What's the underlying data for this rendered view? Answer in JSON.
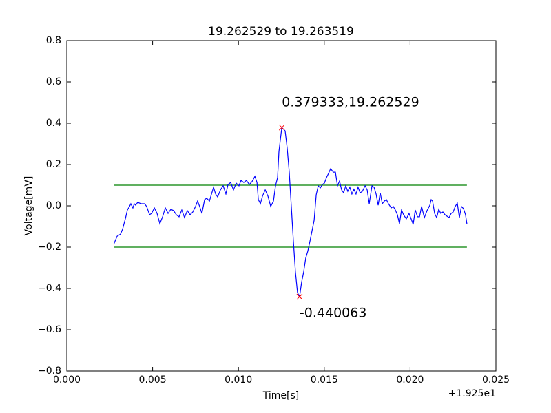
{
  "chart_data": {
    "type": "line",
    "title": "19.262529 to 19.263519",
    "x_label": "Time[s]",
    "y_label": "Voltage[mV]",
    "x_offset_label": "+1.925e1",
    "xlim": [
      0,
      0.025
    ],
    "xticks": [
      {
        "value": 0,
        "label": "0.000"
      },
      {
        "value": 0.005,
        "label": "0.005"
      },
      {
        "value": 0.01,
        "label": "0.010"
      },
      {
        "value": 0.015,
        "label": "0.015"
      },
      {
        "value": 0.02,
        "label": "0.020"
      },
      {
        "value": 0.025,
        "label": "0.025"
      }
    ],
    "ylim": [
      -0.8,
      0.8
    ],
    "yticks": [
      {
        "value": -0.8,
        "label": "−0.8"
      },
      {
        "value": -0.6,
        "label": "−0.6"
      },
      {
        "value": -0.4,
        "label": "−0.4"
      },
      {
        "value": -0.2,
        "label": "−0.2"
      },
      {
        "value": 0,
        "label": "0.0"
      },
      0.2,
      0.4,
      0.6,
      0.8
    ],
    "series": [
      {
        "color": "#0000ff",
        "x": [
          0.00273,
          0.00293,
          0.00313,
          0.00325,
          0.00341,
          0.00353,
          0.00365,
          0.00373,
          0.00385,
          0.00393,
          0.00401,
          0.00413,
          0.00433,
          0.00453,
          0.00465,
          0.00482,
          0.00494,
          0.0051,
          0.00526,
          0.00542,
          0.00558,
          0.00574,
          0.0059,
          0.00606,
          0.00622,
          0.00638,
          0.00654,
          0.0067,
          0.00686,
          0.00702,
          0.00718,
          0.00734,
          0.0075,
          0.00762,
          0.00774,
          0.00787,
          0.00803,
          0.00815,
          0.00831,
          0.00843,
          0.00855,
          0.00867,
          0.00879,
          0.00895,
          0.00911,
          0.00927,
          0.00939,
          0.00955,
          0.00971,
          0.00987,
          0.01003,
          0.01015,
          0.01031,
          0.01047,
          0.01063,
          0.01079,
          0.01096,
          0.01108,
          0.01116,
          0.01128,
          0.0114,
          0.01156,
          0.01172,
          0.01188,
          0.01204,
          0.01216,
          0.01228,
          0.01236,
          0.01248,
          0.012529,
          0.01272,
          0.01284,
          0.01296,
          0.01308,
          0.0132,
          0.01332,
          0.01344,
          0.01356,
          0.01368,
          0.0138,
          0.01392,
          0.01404,
          0.01417,
          0.01429,
          0.01441,
          0.01453,
          0.01465,
          0.01477,
          0.01489,
          0.01501,
          0.01513,
          0.01525,
          0.01537,
          0.01553,
          0.01565,
          0.01577,
          0.01589,
          0.01601,
          0.01613,
          0.01625,
          0.01637,
          0.01649,
          0.01661,
          0.01673,
          0.01685,
          0.01697,
          0.01709,
          0.01722,
          0.01738,
          0.0175,
          0.01762,
          0.01778,
          0.0179,
          0.01802,
          0.01814,
          0.01826,
          0.01838,
          0.0185,
          0.01862,
          0.01874,
          0.0189,
          0.01902,
          0.01914,
          0.01926,
          0.01938,
          0.0195,
          0.01962,
          0.01978,
          0.01994,
          0.02006,
          0.02018,
          0.0203,
          0.02043,
          0.02055,
          0.02067,
          0.02083,
          0.02099,
          0.02115,
          0.02123,
          0.02131,
          0.02143,
          0.02155,
          0.02167,
          0.02179,
          0.02191,
          0.02203,
          0.02215,
          0.02227,
          0.02239,
          0.02251,
          0.02263,
          0.02275,
          0.02287,
          0.02299,
          0.02311,
          0.02323,
          0.02331
        ],
        "values": [
          -0.187,
          -0.147,
          -0.137,
          -0.113,
          -0.063,
          -0.02,
          -0.003,
          0.01,
          -0.01,
          0.01,
          0.003,
          0.017,
          0.01,
          0.01,
          -0.003,
          -0.043,
          -0.037,
          -0.01,
          -0.037,
          -0.087,
          -0.053,
          -0.01,
          -0.037,
          -0.017,
          -0.023,
          -0.043,
          -0.053,
          -0.02,
          -0.057,
          -0.023,
          -0.043,
          -0.03,
          -0.003,
          0.023,
          -0.003,
          -0.037,
          0.03,
          0.037,
          0.023,
          0.057,
          0.09,
          0.057,
          0.043,
          0.077,
          0.097,
          0.057,
          0.103,
          0.113,
          0.077,
          0.11,
          0.097,
          0.123,
          0.113,
          0.123,
          0.103,
          0.117,
          0.143,
          0.113,
          0.03,
          0.01,
          0.047,
          0.077,
          0.047,
          -0.003,
          0.023,
          0.097,
          0.137,
          0.263,
          0.347,
          0.379333,
          0.363,
          0.28,
          0.163,
          -0.003,
          -0.17,
          -0.32,
          -0.42,
          -0.440063,
          -0.37,
          -0.32,
          -0.253,
          -0.22,
          -0.17,
          -0.12,
          -0.07,
          0.053,
          0.097,
          0.087,
          0.103,
          0.11,
          0.137,
          0.157,
          0.18,
          0.163,
          0.163,
          0.097,
          0.12,
          0.077,
          0.063,
          0.097,
          0.07,
          0.09,
          0.057,
          0.08,
          0.057,
          0.09,
          0.063,
          0.07,
          0.097,
          0.077,
          0.01,
          0.097,
          0.09,
          0.057,
          0.003,
          0.063,
          0.01,
          0.023,
          0.03,
          0.01,
          -0.01,
          -0.003,
          -0.02,
          -0.043,
          -0.087,
          -0.02,
          -0.043,
          -0.063,
          -0.037,
          -0.063,
          -0.09,
          -0.02,
          -0.053,
          -0.053,
          -0.003,
          -0.057,
          -0.023,
          0.003,
          0.03,
          0.023,
          -0.037,
          -0.057,
          -0.017,
          -0.037,
          -0.03,
          -0.043,
          -0.05,
          -0.057,
          -0.037,
          -0.03,
          -0.003,
          0.013,
          -0.057,
          -0.003,
          -0.013,
          -0.043,
          -0.087
        ]
      }
    ],
    "hlines": [
      {
        "value": 0.1,
        "xmin": 0.00273,
        "xmax": 0.02331,
        "color": "#008000"
      },
      {
        "value": -0.2,
        "xmin": 0.00273,
        "xmax": 0.02331,
        "color": "#008000"
      }
    ],
    "markers": [
      {
        "x": 0.012529,
        "y": 0.379333,
        "color": "#ff0000",
        "label": "0.379333,19.262529"
      },
      {
        "x": 0.01356,
        "y": -0.440063,
        "color": "#ff0000",
        "label": "-0.440063"
      }
    ]
  }
}
